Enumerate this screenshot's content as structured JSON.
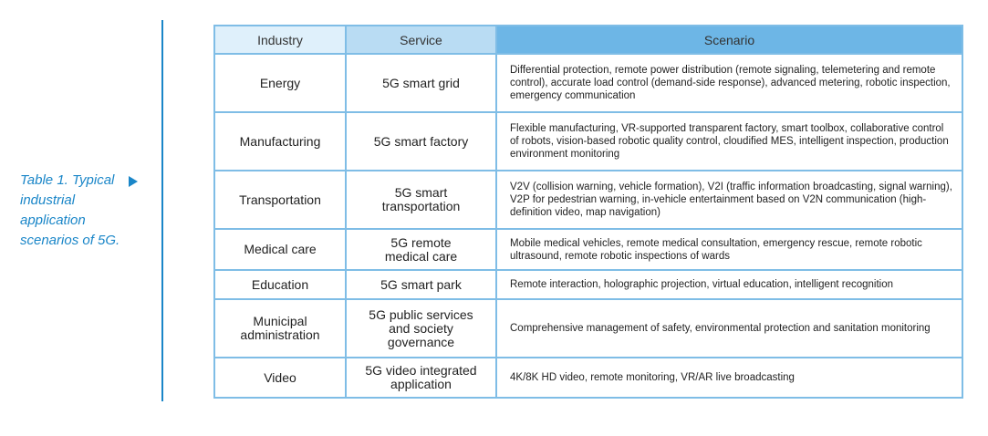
{
  "caption": "Table 1. Typical industrial application scenarios of 5G.",
  "headers": {
    "industry": "Industry",
    "service": "Service",
    "scenario": "Scenario"
  },
  "rows": [
    {
      "industry": "Energy",
      "service": "5G smart grid",
      "scenario": "Differential protection, remote power distribution (remote signaling, telemetering and remote control), accurate load control (demand-side response), advanced metering, robotic inspection, emergency communication"
    },
    {
      "industry": "Manufacturing",
      "service": "5G smart factory",
      "scenario": "Flexible manufacturing, VR-supported transparent factory, smart toolbox, collaborative control of robots, vision-based robotic quality control, cloudified MES, intelligent inspection, production environment monitoring"
    },
    {
      "industry": "Transportation",
      "service": "5G smart transportation",
      "scenario": "V2V (collision warning, vehicle formation), V2I (traffic information broadcasting, signal warning), V2P for pedestrian warning, in-vehicle entertainment based on V2N communication (high-definition video, map navigation)"
    },
    {
      "industry": "Medical care",
      "service": "5G remote medical care",
      "scenario": "Mobile medical vehicles, remote medical consultation, emergency rescue, remote robotic ultrasound, remote robotic inspections of wards"
    },
    {
      "industry": "Education",
      "service": "5G smart park",
      "scenario": "Remote interaction, holographic projection, virtual education, intelligent recognition"
    },
    {
      "industry": "Municipal administration",
      "service": "5G public services and society governance",
      "scenario": "Comprehensive management of safety, environmental protection and sanitation monitoring"
    },
    {
      "industry": "Video",
      "service": "5G video integrated application",
      "scenario": "4K/8K HD video, remote monitoring, VR/AR live broadcasting"
    }
  ]
}
